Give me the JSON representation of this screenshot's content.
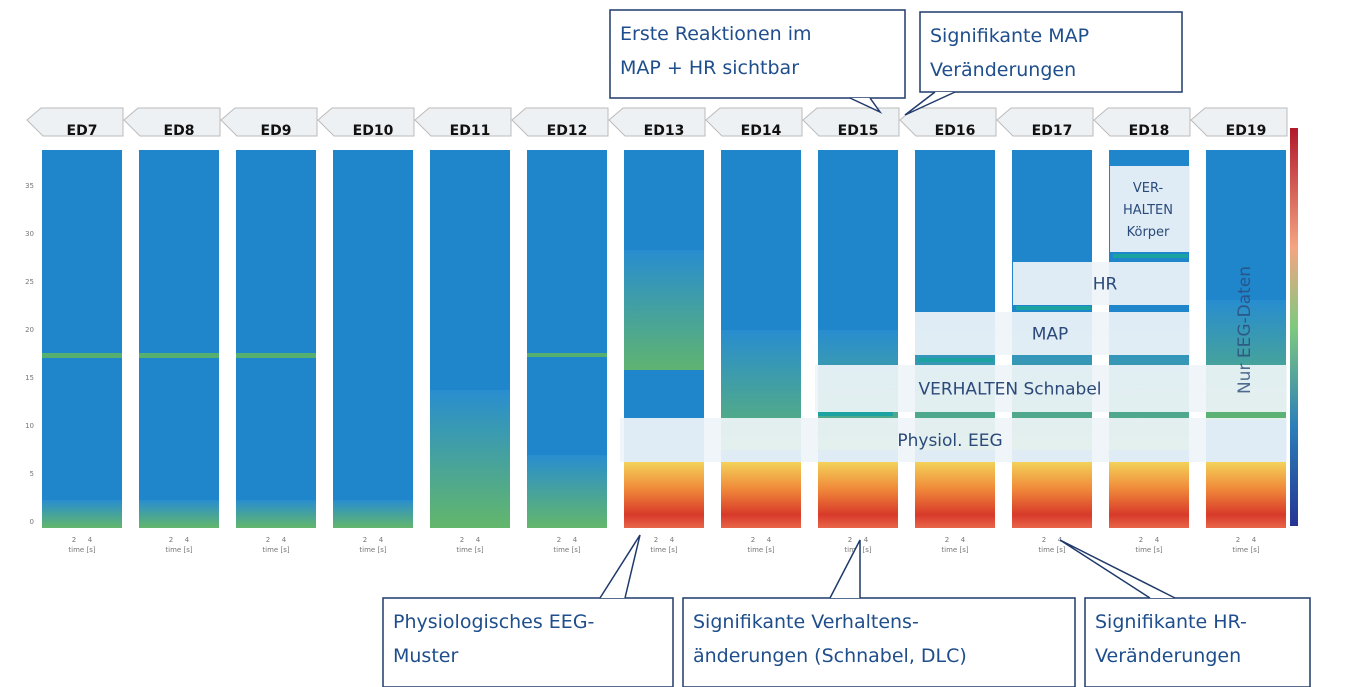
{
  "panels": [
    "ED7",
    "ED8",
    "ED9",
    "ED10",
    "ED11",
    "ED12",
    "ED13",
    "ED14",
    "ED15",
    "ED16",
    "ED17",
    "ED18",
    "ED19"
  ],
  "y_axis": {
    "ticks": [
      "0",
      "5",
      "10",
      "15",
      "20",
      "25",
      "30",
      "35"
    ]
  },
  "x_axis": {
    "ticks": [
      "2",
      "4"
    ],
    "label": "time [s]"
  },
  "bands": {
    "physiol": "Physiol. EEG",
    "schnabel": "VERHALTEN Schnabel",
    "map": "MAP",
    "hr": "HR",
    "koerper": [
      "VER-",
      "HALTEN",
      "Körper"
    ],
    "eeg_only": "Nur EEG-Daten"
  },
  "callouts": {
    "top_left": [
      "Erste Reaktionen im",
      "MAP + HR sichtbar"
    ],
    "top_right": [
      "Signifikante MAP",
      "Veränderungen"
    ],
    "bottom_left": [
      "Physiologisches EEG-",
      "Muster"
    ],
    "bottom_mid": [
      "Signifikante Verhaltens-",
      "änderungen (Schnabel, DLC)"
    ],
    "bottom_right": [
      "Signifikante HR-",
      "Veränderungen"
    ]
  }
}
